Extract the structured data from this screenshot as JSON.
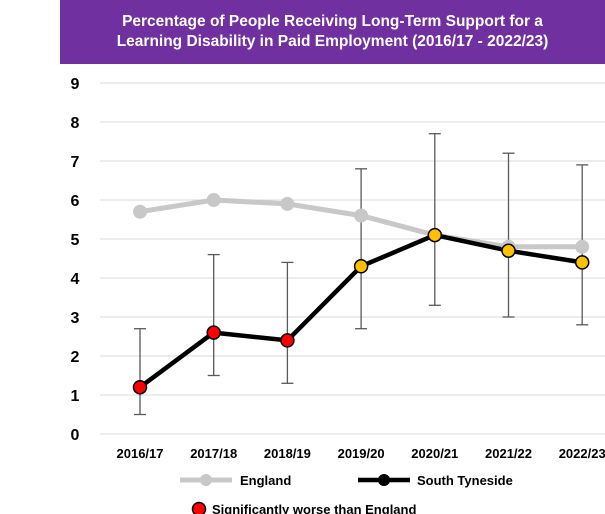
{
  "chart_data": {
    "type": "line",
    "title_lines": [
      "Percentage of People Receiving Long-Term Support for a",
      "Learning Disability in Paid Employment (2016/17 - 2022/23)"
    ],
    "categories": [
      "2016/17",
      "2017/18",
      "2018/19",
      "2019/20",
      "2020/21",
      "2021/22",
      "2022/23"
    ],
    "ylim": [
      0,
      9
    ],
    "yticks": [
      0,
      1,
      2,
      3,
      4,
      5,
      6,
      7,
      8,
      9
    ],
    "grid": true,
    "series": [
      {
        "name": "England",
        "color": "#c8c8c8",
        "values": [
          5.7,
          6.0,
          5.9,
          5.6,
          5.1,
          4.8,
          4.8
        ]
      },
      {
        "name": "South Tyneside",
        "color": "#000000",
        "values": [
          1.2,
          2.6,
          2.4,
          4.3,
          5.1,
          4.7,
          4.4
        ],
        "ci_lower": [
          0.5,
          1.5,
          1.3,
          2.7,
          3.3,
          3.0,
          2.8
        ],
        "ci_upper": [
          2.7,
          4.6,
          4.4,
          6.8,
          7.7,
          7.2,
          6.9
        ],
        "marker_status": [
          "worse",
          "worse",
          "worse",
          "similar",
          "similar",
          "similar",
          "similar"
        ]
      }
    ],
    "status_colors": {
      "worse": "#ff0000",
      "similar": "#ffc000"
    },
    "legend": {
      "placement": "bottom",
      "significance_label": "Significantly worse than England"
    }
  }
}
